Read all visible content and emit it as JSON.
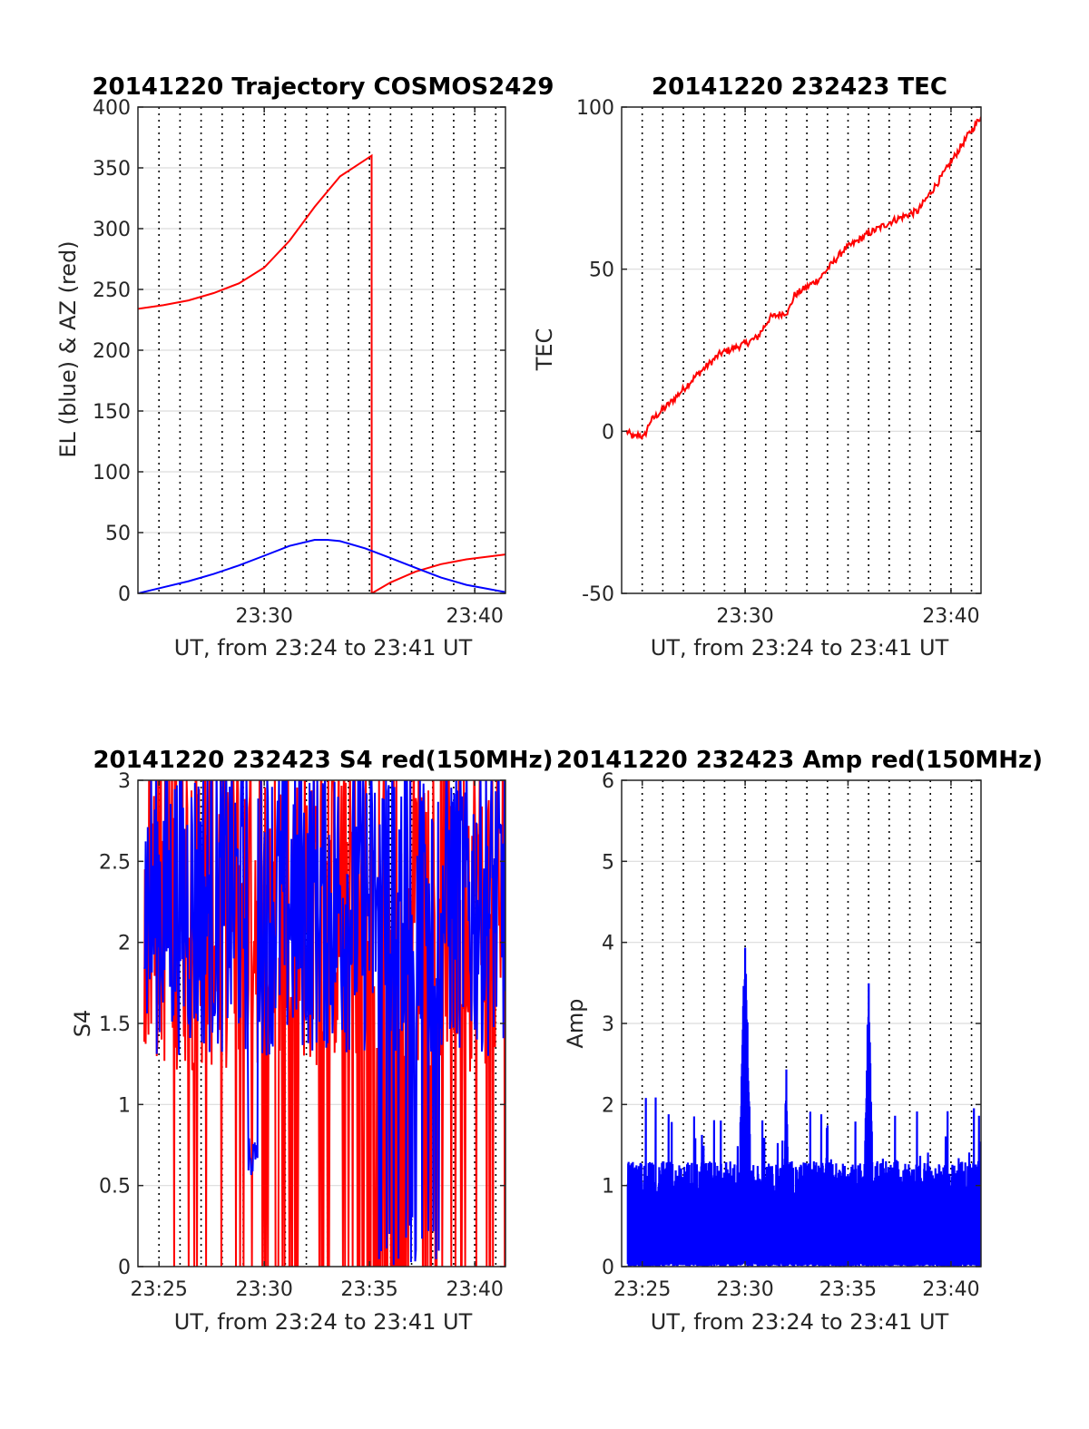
{
  "chart_data": [
    {
      "type": "line",
      "title": "20141220 Trajectory COSMOS2429",
      "xlabel": "UT, from 23:24 to 23:41 UT",
      "ylabel": "EL (blue) & AZ (red)",
      "xlim": [
        23.4,
        23.691
      ],
      "ylim": [
        0,
        400
      ],
      "x_ticks": [
        {
          "value": 23.5,
          "label": "23:30"
        },
        {
          "value": 23.6667,
          "label": "23:40"
        }
      ],
      "y_ticks": [
        0,
        50,
        100,
        150,
        200,
        250,
        300,
        350,
        400
      ],
      "grid": {
        "x_dotted_minutes": true,
        "y": true
      },
      "series": [
        {
          "color": "#ff0000",
          "points": [
            [
              23.4,
              234
            ],
            [
              23.42,
              237
            ],
            [
              23.44,
              241
            ],
            [
              23.46,
              247
            ],
            [
              23.48,
              255
            ],
            [
              23.5,
              268
            ],
            [
              23.52,
              290
            ],
            [
              23.54,
              318
            ],
            [
              23.56,
              343
            ],
            [
              23.585,
              360
            ],
            [
              23.5851,
              0
            ],
            [
              23.6,
              9
            ],
            [
              23.62,
              18
            ],
            [
              23.64,
              24
            ],
            [
              23.66,
              28
            ],
            [
              23.691,
              32
            ]
          ]
        },
        {
          "color": "#0000ff",
          "points": [
            [
              23.4,
              0
            ],
            [
              23.42,
              5
            ],
            [
              23.44,
              10
            ],
            [
              23.46,
              16
            ],
            [
              23.48,
              23
            ],
            [
              23.5,
              31
            ],
            [
              23.52,
              39
            ],
            [
              23.54,
              44
            ],
            [
              23.55,
              44
            ],
            [
              23.56,
              43
            ],
            [
              23.58,
              37
            ],
            [
              23.6,
              29
            ],
            [
              23.62,
              21
            ],
            [
              23.64,
              13
            ],
            [
              23.66,
              7
            ],
            [
              23.691,
              1
            ]
          ]
        }
      ]
    },
    {
      "type": "line",
      "title": "20141220 232423 TEC",
      "xlabel": "UT, from 23:24 to 23:41 UT",
      "ylabel": "TEC",
      "xlim": [
        23.4,
        23.691
      ],
      "ylim": [
        -50,
        100
      ],
      "x_ticks": [
        {
          "value": 23.5,
          "label": "23:30"
        },
        {
          "value": 23.6667,
          "label": "23:40"
        }
      ],
      "y_ticks": [
        -50,
        0,
        50,
        100
      ],
      "grid": {
        "x_dotted_minutes": true,
        "y": true
      },
      "series": [
        {
          "color": "#ff0000",
          "points": [
            [
              23.404,
              0
            ],
            [
              23.41,
              -2
            ],
            [
              23.414,
              -1
            ],
            [
              23.418,
              -2
            ],
            [
              23.423,
              3
            ],
            [
              23.44,
              9
            ],
            [
              23.46,
              17
            ],
            [
              23.48,
              24
            ],
            [
              23.5,
              27
            ],
            [
              23.51,
              29
            ],
            [
              23.52,
              35
            ],
            [
              23.535,
              37
            ],
            [
              23.54,
              42
            ],
            [
              23.56,
              47
            ],
            [
              23.58,
              56
            ],
            [
              23.6,
              61
            ],
            [
              23.62,
              65
            ],
            [
              23.64,
              68
            ],
            [
              23.66,
              79
            ],
            [
              23.68,
              91
            ],
            [
              23.691,
              97
            ]
          ]
        }
      ]
    },
    {
      "type": "line",
      "title": "20141220 232423 S4 red(150MHz)",
      "xlabel": "UT, from 23:24 to 23:41 UT",
      "ylabel": "S4",
      "xlim": [
        23.4,
        23.691
      ],
      "ylim": [
        0,
        3
      ],
      "x_ticks": [
        {
          "value": 23.4167,
          "label": "23:25"
        },
        {
          "value": 23.5,
          "label": "23:30"
        },
        {
          "value": 23.5833,
          "label": "23:35"
        },
        {
          "value": 23.6667,
          "label": "23:40"
        }
      ],
      "y_ticks": [
        0,
        0.5,
        1,
        1.5,
        2,
        2.5,
        3
      ],
      "grid": {
        "x_dotted_minutes": true,
        "y": true
      },
      "series": [
        {
          "color": "#ff0000",
          "description": "noisy trace, mostly 1.2-3, frequent drops to 0"
        },
        {
          "color": "#0000ff",
          "description": "noisy trace, mostly 1.2-3, dip to ~0.55 near 23:29.5"
        }
      ]
    },
    {
      "type": "line",
      "title": "20141220 232423 Amp red(150MHz)",
      "xlabel": "UT, from 23:24 to 23:41 UT",
      "ylabel": "Amp",
      "xlim": [
        23.4,
        23.691
      ],
      "ylim": [
        0,
        6
      ],
      "x_ticks": [
        {
          "value": 23.4167,
          "label": "23:25"
        },
        {
          "value": 23.5,
          "label": "23:30"
        },
        {
          "value": 23.5833,
          "label": "23:35"
        },
        {
          "value": 23.6667,
          "label": "23:40"
        }
      ],
      "y_ticks": [
        0,
        1,
        2,
        3,
        4,
        5,
        6
      ],
      "grid": {
        "x_dotted_minutes": true,
        "y": true
      },
      "series": [
        {
          "color": "#0000ff",
          "description": "dense noise 0-1.3, peaks ~4.3 at 23:30, ~2.6 at 23:32, ~3.6 at 23:36"
        }
      ]
    }
  ]
}
